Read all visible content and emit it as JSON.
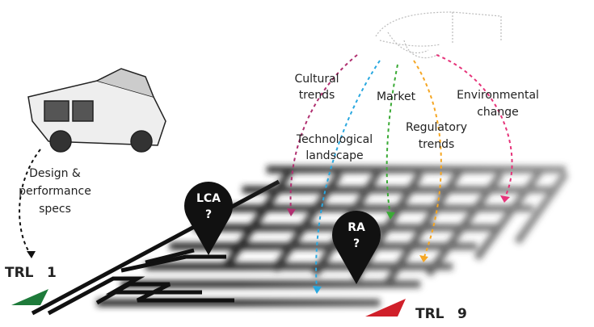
{
  "labels": {
    "cultural": [
      "Cultural",
      "trends"
    ],
    "technological": [
      "Technological",
      "landscape"
    ],
    "market": [
      "Market"
    ],
    "regulatory": [
      "Regulatory",
      "trends"
    ],
    "environmental": [
      "Environmental",
      "change"
    ],
    "design": [
      "Design &",
      "performance",
      "specs"
    ]
  },
  "pins": {
    "lca": [
      "LCA",
      "?"
    ],
    "ra": [
      "RA",
      "?"
    ]
  },
  "trl": {
    "start": [
      "TRL",
      "1"
    ],
    "end": [
      "TRL",
      "9"
    ]
  }
}
